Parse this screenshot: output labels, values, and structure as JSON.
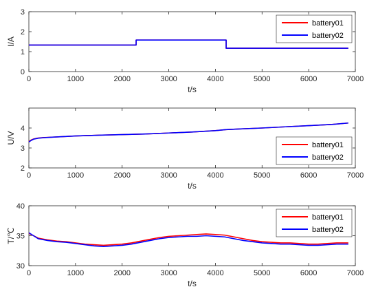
{
  "colors": {
    "battery01": "#ff0000",
    "battery02": "#0000ff"
  },
  "chart_data": [
    {
      "type": "line",
      "xlabel": "t/s",
      "ylabel": "I/A",
      "xlim": [
        0,
        7000
      ],
      "ylim": [
        0,
        3
      ],
      "xticks": [
        "0",
        "1000",
        "2000",
        "3000",
        "4000",
        "5000",
        "6000",
        "7000"
      ],
      "yticks": [
        "0",
        "1",
        "2",
        "3"
      ],
      "legend": {
        "placement": "top-right",
        "entries": [
          "battery01",
          "battery02"
        ]
      },
      "series": [
        {
          "name": "battery01",
          "x": [
            0,
            2300,
            2300,
            4230,
            4230,
            6850
          ],
          "y": [
            1.33,
            1.33,
            1.58,
            1.58,
            1.17,
            1.17
          ]
        },
        {
          "name": "battery02",
          "x": [
            0,
            2300,
            2300,
            4230,
            4230,
            6850
          ],
          "y": [
            1.33,
            1.33,
            1.58,
            1.58,
            1.17,
            1.17
          ]
        }
      ]
    },
    {
      "type": "line",
      "xlabel": "t/s",
      "ylabel": "U/V",
      "xlim": [
        0,
        7000
      ],
      "ylim": [
        2,
        5
      ],
      "xticks": [
        "0",
        "1000",
        "2000",
        "3000",
        "4000",
        "5000",
        "6000",
        "7000"
      ],
      "yticks": [
        "2",
        "3",
        "4"
      ],
      "legend": {
        "placement": "bottom-right",
        "entries": [
          "battery01",
          "battery02"
        ]
      },
      "series": [
        {
          "name": "battery01",
          "x": [
            0,
            50,
            100,
            200,
            300,
            500,
            1000,
            1500,
            2000,
            2500,
            3000,
            3500,
            4000,
            4230,
            4500,
            5000,
            5500,
            6000,
            6500,
            6850
          ],
          "y": [
            3.32,
            3.4,
            3.45,
            3.5,
            3.52,
            3.54,
            3.6,
            3.64,
            3.67,
            3.7,
            3.75,
            3.8,
            3.87,
            3.92,
            3.95,
            4.0,
            4.06,
            4.12,
            4.18,
            4.25
          ]
        },
        {
          "name": "battery02",
          "x": [
            0,
            50,
            100,
            200,
            300,
            500,
            1000,
            1500,
            2000,
            2500,
            3000,
            3500,
            4000,
            4230,
            4500,
            5000,
            5500,
            6000,
            6500,
            6850
          ],
          "y": [
            3.3,
            3.38,
            3.44,
            3.49,
            3.51,
            3.54,
            3.6,
            3.64,
            3.67,
            3.7,
            3.75,
            3.8,
            3.87,
            3.92,
            3.95,
            4.0,
            4.06,
            4.12,
            4.18,
            4.25
          ]
        }
      ]
    },
    {
      "type": "line",
      "xlabel": "t/s",
      "ylabel": "T/℃",
      "xlim": [
        0,
        7000
      ],
      "ylim": [
        30,
        40
      ],
      "xticks": [
        "0",
        "1000",
        "2000",
        "3000",
        "4000",
        "5000",
        "6000",
        "7000"
      ],
      "yticks": [
        "30",
        "35",
        "40"
      ],
      "legend": {
        "placement": "top-right",
        "entries": [
          "battery01",
          "battery02"
        ]
      },
      "series": [
        {
          "name": "battery01",
          "x": [
            0,
            100,
            200,
            400,
            600,
            800,
            1000,
            1200,
            1400,
            1600,
            1800,
            2000,
            2200,
            2400,
            2600,
            2800,
            3000,
            3200,
            3400,
            3600,
            3800,
            4000,
            4200,
            4400,
            4600,
            4800,
            5000,
            5200,
            5400,
            5600,
            5800,
            6000,
            6200,
            6400,
            6600,
            6850
          ],
          "y": [
            35.4,
            35.0,
            34.6,
            34.3,
            34.1,
            34.0,
            33.8,
            33.6,
            33.5,
            33.4,
            33.5,
            33.6,
            33.8,
            34.1,
            34.4,
            34.7,
            34.9,
            35.0,
            35.1,
            35.2,
            35.3,
            35.2,
            35.1,
            34.8,
            34.5,
            34.2,
            34.0,
            33.9,
            33.8,
            33.8,
            33.7,
            33.6,
            33.6,
            33.7,
            33.8,
            33.8
          ]
        },
        {
          "name": "battery02",
          "x": [
            0,
            100,
            200,
            400,
            600,
            800,
            1000,
            1200,
            1400,
            1600,
            1800,
            2000,
            2200,
            2400,
            2600,
            2800,
            3000,
            3200,
            3400,
            3600,
            3800,
            4000,
            4200,
            4400,
            4600,
            4800,
            5000,
            5200,
            5400,
            5600,
            5800,
            6000,
            6200,
            6400,
            6600,
            6850
          ],
          "y": [
            35.5,
            35.0,
            34.5,
            34.2,
            34.0,
            33.9,
            33.7,
            33.5,
            33.3,
            33.2,
            33.3,
            33.4,
            33.6,
            33.9,
            34.2,
            34.5,
            34.7,
            34.8,
            34.9,
            34.9,
            35.0,
            34.9,
            34.8,
            34.5,
            34.2,
            34.0,
            33.8,
            33.7,
            33.6,
            33.6,
            33.5,
            33.4,
            33.4,
            33.5,
            33.6,
            33.6
          ]
        }
      ]
    }
  ]
}
